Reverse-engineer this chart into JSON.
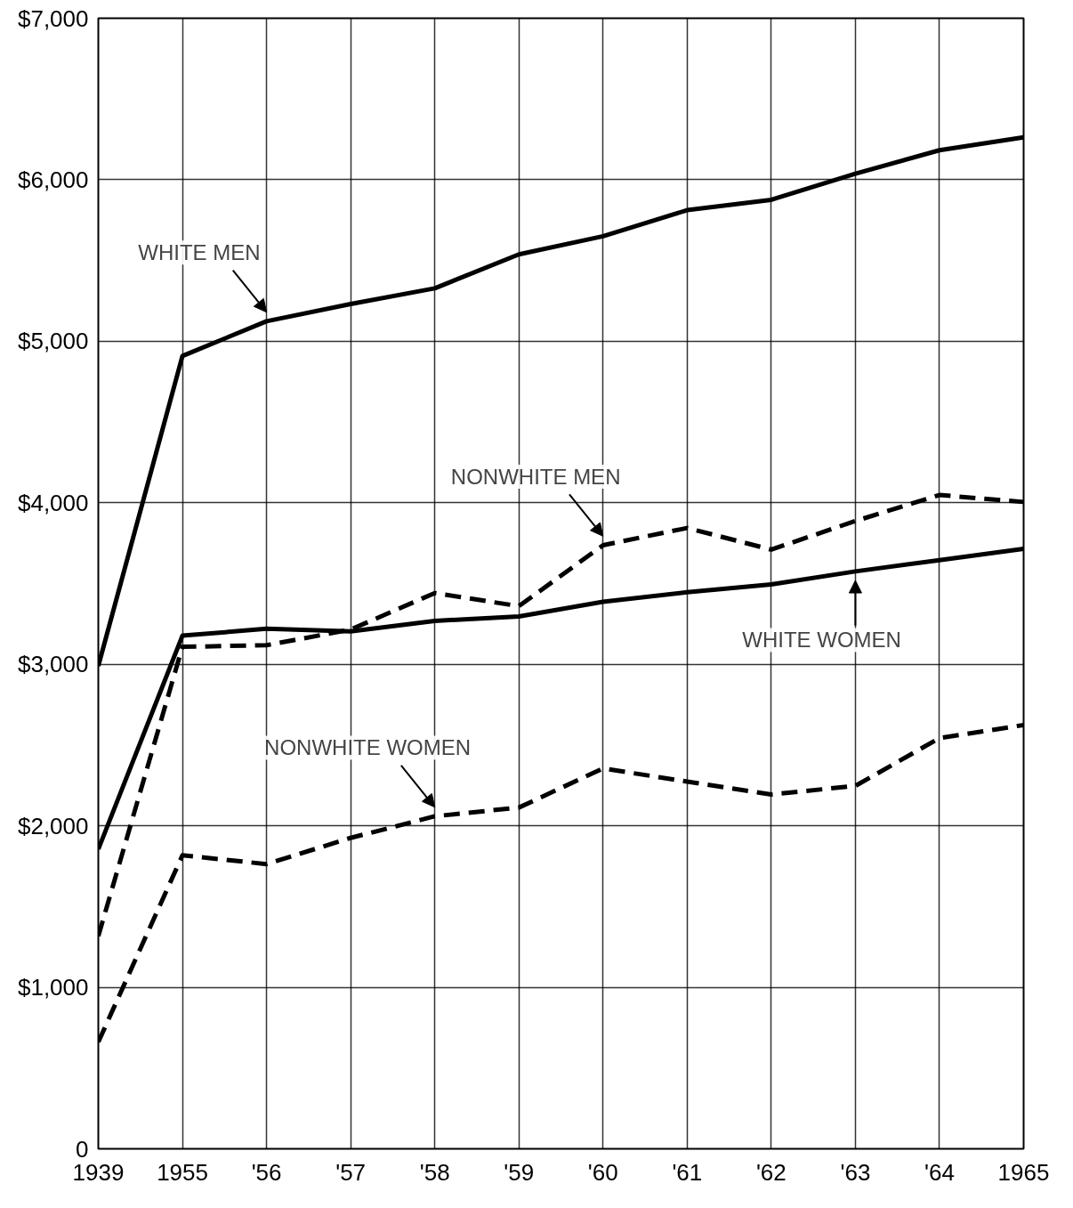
{
  "chart_data": {
    "type": "line",
    "categories": [
      "1939",
      "1955",
      "'56",
      "'57",
      "'58",
      "'59",
      "'60",
      "'61",
      "'62",
      "'63",
      "'64",
      "1965"
    ],
    "ylim": [
      0,
      7000
    ],
    "yticks": [
      {
        "value": 0,
        "label": "0"
      },
      {
        "value": 1000,
        "label": "$1,000"
      },
      {
        "value": 2000,
        "label": "$2,000"
      },
      {
        "value": 3000,
        "label": "$3,000"
      },
      {
        "value": 4000,
        "label": "$4,000"
      },
      {
        "value": 5000,
        "label": "$5,000"
      },
      {
        "value": 6000,
        "label": "$6,000"
      },
      {
        "value": 7000,
        "label": "$7,000"
      }
    ],
    "grid": true,
    "series": [
      {
        "color": "#000000",
        "line_style": "solid",
        "values": [
          2990,
          4909,
          5124,
          5231,
          5328,
          5538,
          5650,
          5812,
          5876,
          6037,
          6183,
          6263
        ]
      },
      {
        "color": "#000000",
        "line_style": "dashed",
        "values": [
          1317,
          3108,
          3118,
          3215,
          3441,
          3360,
          3737,
          3844,
          3710,
          3887,
          4048,
          4005
        ]
      },
      {
        "color": "#000000",
        "line_style": "solid",
        "values": [
          1855,
          3177,
          3220,
          3204,
          3269,
          3296,
          3387,
          3446,
          3495,
          3575,
          3645,
          3715
        ]
      },
      {
        "color": "#000000",
        "line_style": "dashed",
        "values": [
          661,
          1817,
          1763,
          1925,
          2059,
          2113,
          2355,
          2274,
          2194,
          2247,
          2543,
          2624
        ]
      }
    ],
    "annotations": [
      {
        "text": "WHITE MEN",
        "x": "'56",
        "y": 5124
      },
      {
        "text": "NONWHITE MEN",
        "x": "'60",
        "y": 3737
      },
      {
        "text": "WHITE WOMEN",
        "x": "'63",
        "y": 3575
      },
      {
        "text": "NONWHITE WOMEN",
        "x": "'58",
        "y": 2059
      }
    ]
  }
}
